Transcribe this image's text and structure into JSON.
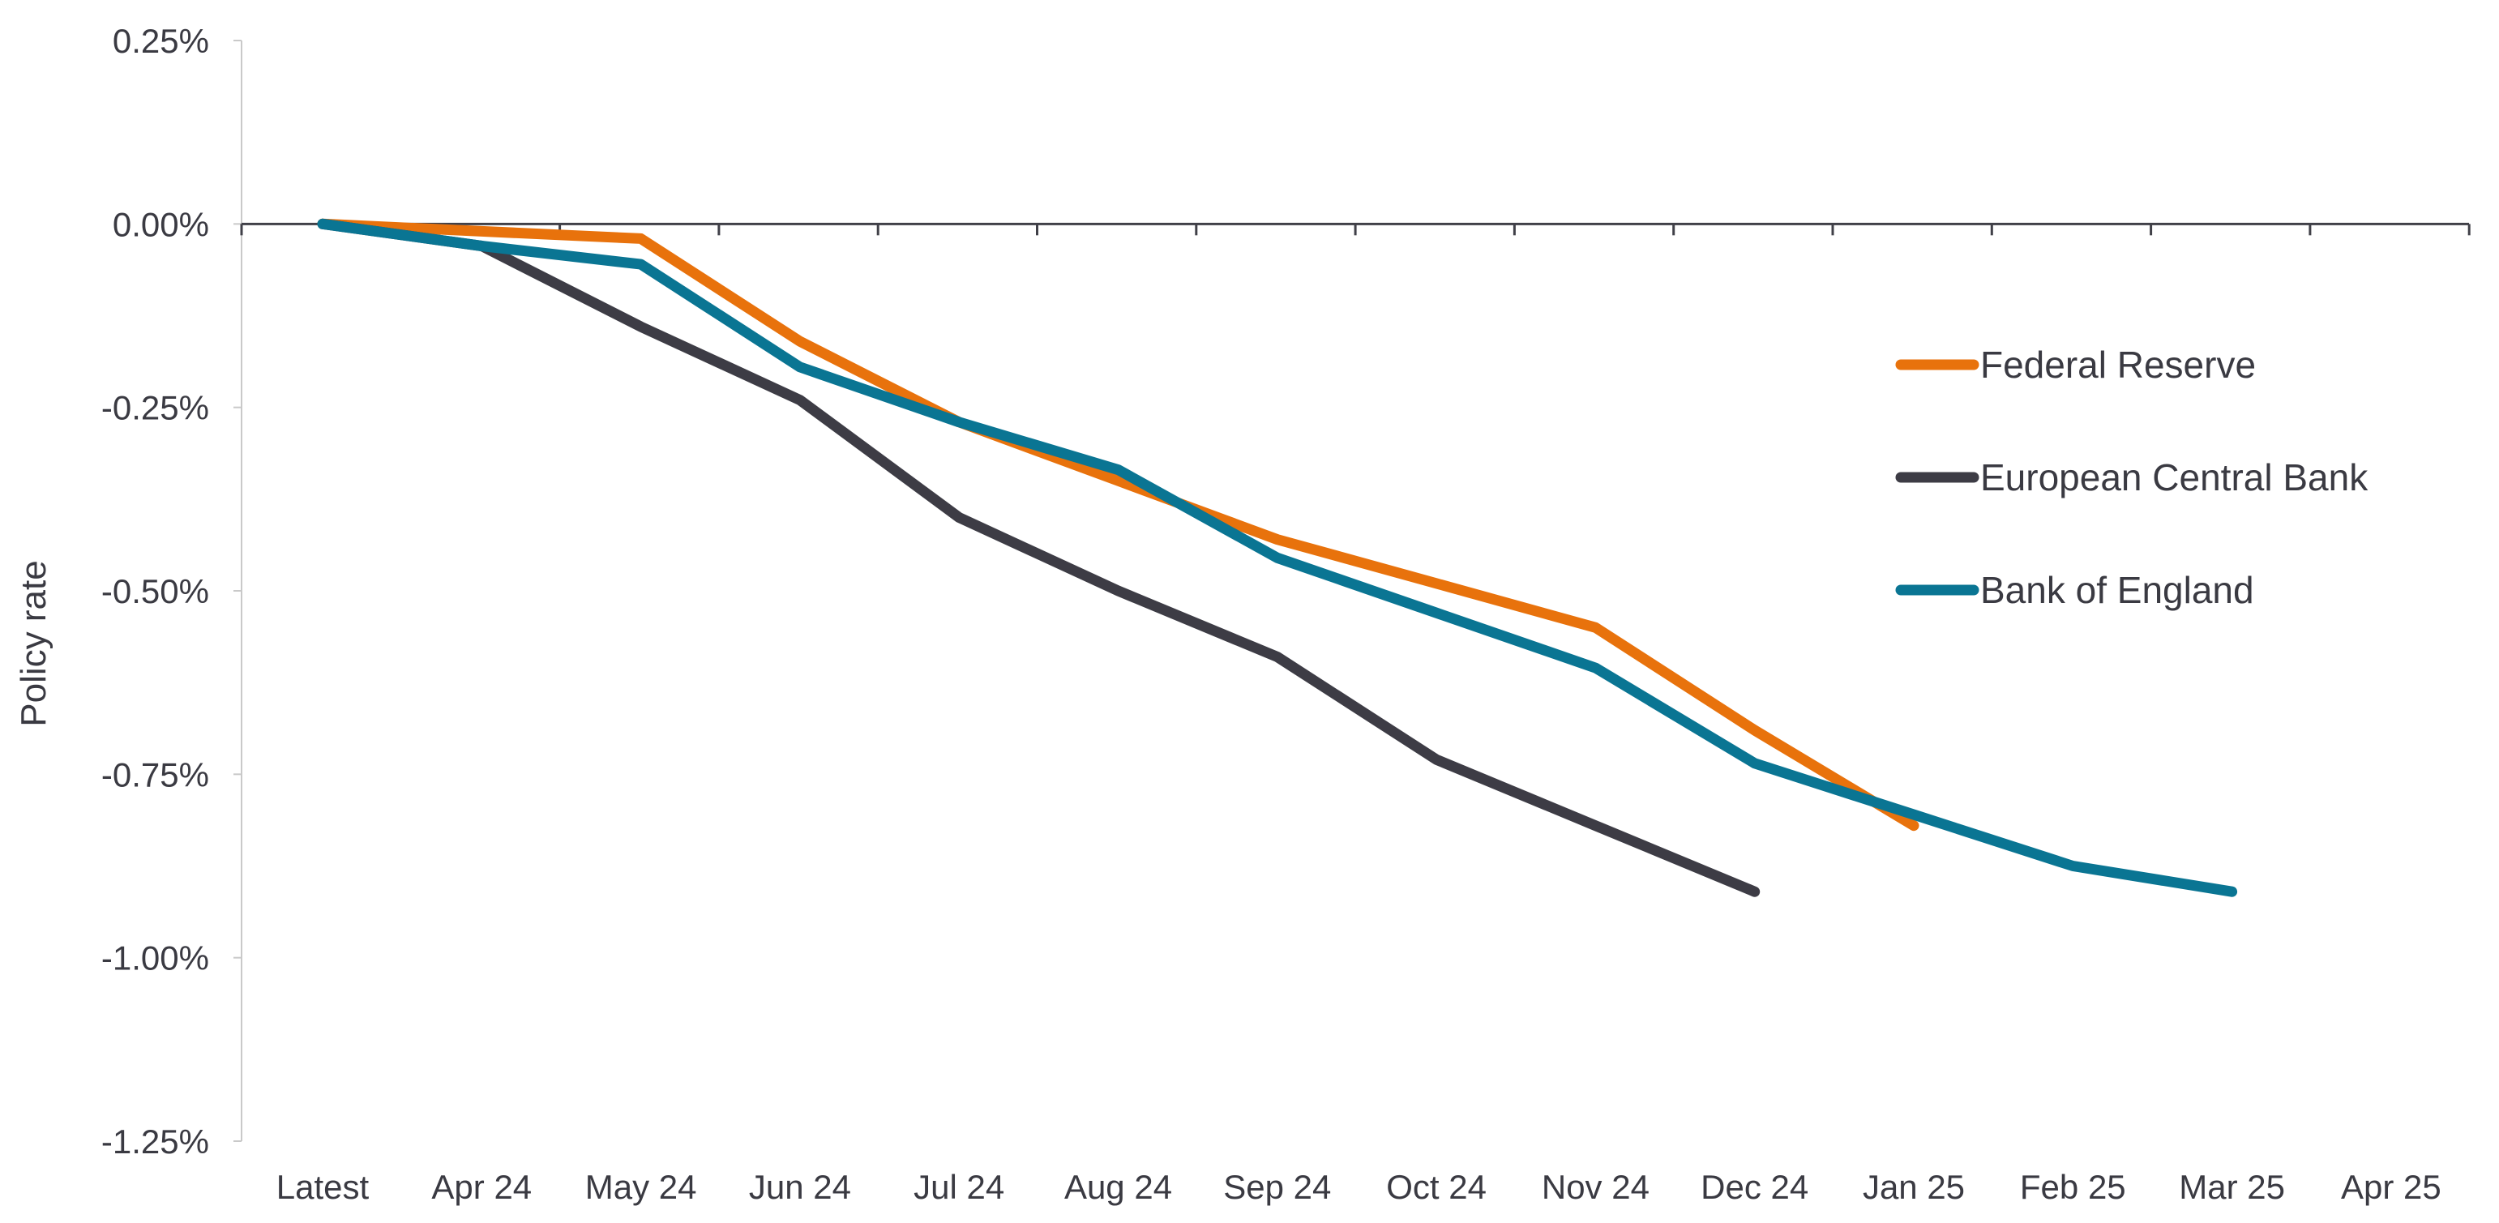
{
  "chart_data": {
    "type": "line",
    "title": "",
    "xlabel": "",
    "ylabel": "Policy rate",
    "categories": [
      "Latest",
      "Apr 24",
      "May 24",
      "Jun 24",
      "Jul 24",
      "Aug 24",
      "Sep 24",
      "Oct 24",
      "Nov 24",
      "Dec 24",
      "Jan 25",
      "Feb 25",
      "Mar 25",
      "Apr 25"
    ],
    "ylim": [
      -1.25,
      0.25
    ],
    "yticks": [
      0.25,
      0.0,
      -0.25,
      -0.5,
      -0.75,
      -1.0,
      -1.25
    ],
    "ytick_labels": [
      "0.25%",
      "0.00%",
      "-0.25%",
      "-0.50%",
      "-0.75%",
      "-1.00%",
      "-1.25%"
    ],
    "grid": false,
    "legend_position": "right",
    "series": [
      {
        "name": "Federal Reserve",
        "color": "#e8720c",
        "values": [
          0.0,
          -0.01,
          -0.02,
          -0.16,
          -0.27,
          -0.35,
          -0.43,
          -0.49,
          -0.55,
          -0.69,
          -0.82,
          null,
          null,
          null
        ]
      },
      {
        "name": "European Central Bank",
        "color": "#3d3c45",
        "values": [
          0.0,
          -0.03,
          -0.14,
          -0.24,
          -0.4,
          -0.5,
          -0.59,
          -0.73,
          -0.82,
          -0.91,
          null,
          null,
          null,
          null
        ]
      },
      {
        "name": "Bank of England",
        "color": "#0a7593",
        "values": [
          0.0,
          -0.03,
          -0.055,
          -0.195,
          -0.27,
          -0.335,
          -0.455,
          -0.53,
          -0.605,
          -0.735,
          -0.805,
          -0.875,
          -0.91,
          null
        ]
      }
    ]
  }
}
